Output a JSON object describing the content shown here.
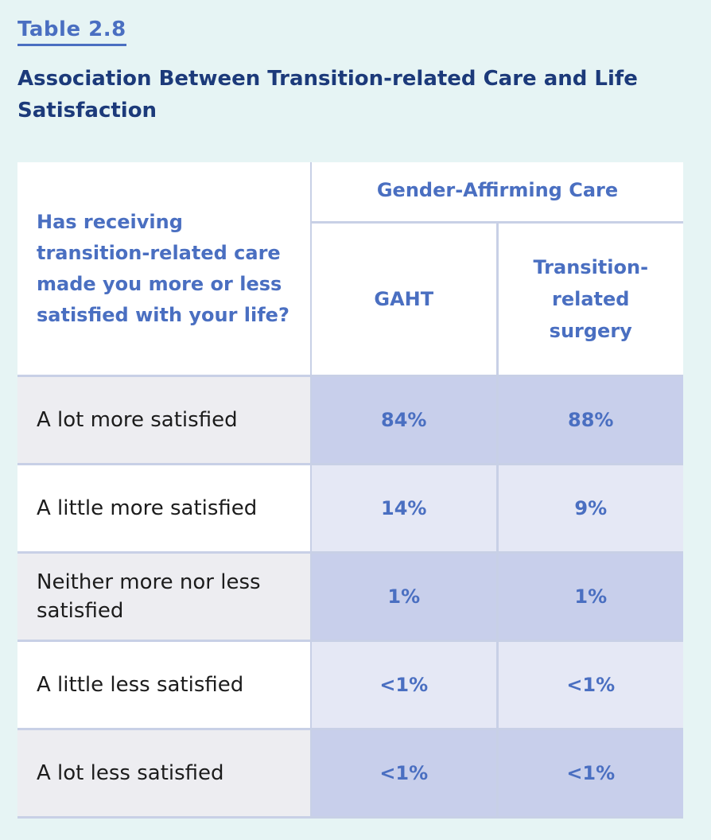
{
  "label": "Table 2.8",
  "title": "Association Between Transition-related Care and Life Satisfaction",
  "table": {
    "row_header": "Has receiving transition-related care made you more or less satisfied with your life?",
    "group_header": "Gender-Affirming Care",
    "columns": [
      "GAHT",
      "Transition-related surgery"
    ],
    "rows": [
      {
        "label": "A lot more satisfied",
        "values": [
          "84%",
          "88%"
        ]
      },
      {
        "label": "A little more satisfied",
        "values": [
          "14%",
          "9%"
        ]
      },
      {
        "label": "Neither more nor less satisfied",
        "values": [
          "1%",
          "1%"
        ]
      },
      {
        "label": "A little less satisfied",
        "values": [
          "<1%",
          "<1%"
        ]
      },
      {
        "label": "A lot less satisfied",
        "values": [
          "<1%",
          "<1%"
        ]
      }
    ]
  },
  "colors": {
    "background": "#e6f4f4",
    "accent": "#4a6fc1",
    "title": "#1c3a7a",
    "row_dark_label": "#ededf1",
    "row_dark_value": "#c8cfeb",
    "row_light_value": "#e5e8f5",
    "grid": "#c8d0e6"
  }
}
